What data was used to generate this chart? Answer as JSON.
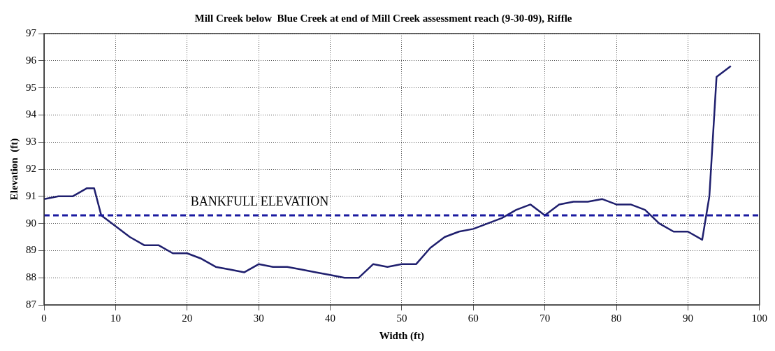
{
  "chart_data": {
    "type": "line",
    "title": "Mill Creek below  Blue Creek at end of Mill Creek assessment reach (9-30-09), Riffle",
    "xlabel": "Width (ft)",
    "ylabel": "Elevation  (ft)",
    "x": [
      0,
      2,
      4,
      6,
      7,
      8,
      10,
      12,
      14,
      16,
      18,
      20,
      22,
      24,
      26,
      28,
      30,
      32,
      34,
      36,
      38,
      40,
      42,
      44,
      46,
      48,
      50,
      52,
      54,
      56,
      58,
      60,
      62,
      64,
      66,
      68,
      70,
      72,
      74,
      76,
      78,
      80,
      82,
      84,
      86,
      88,
      90,
      92,
      93,
      94,
      96
    ],
    "series": [
      {
        "color": "#1f1f6e",
        "values": [
          90.9,
          91.0,
          91.0,
          91.3,
          91.3,
          90.3,
          89.9,
          89.5,
          89.2,
          89.2,
          88.9,
          88.9,
          88.7,
          88.4,
          88.3,
          88.2,
          88.5,
          88.4,
          88.4,
          88.3,
          88.2,
          88.1,
          88.0,
          88.0,
          88.5,
          88.4,
          88.5,
          88.5,
          89.1,
          89.5,
          89.7,
          89.8,
          90.0,
          90.2,
          90.5,
          90.7,
          90.3,
          90.7,
          90.8,
          90.8,
          90.9,
          90.7,
          90.7,
          90.5,
          90.0,
          89.7,
          89.7,
          89.4,
          91.0,
          95.4,
          95.8
        ]
      }
    ],
    "ref_lines": [
      {
        "axis": "y",
        "value": 90.3,
        "label": "BANKFULL ELEVATION",
        "color": "#1a1aa0",
        "line_style": "dashed"
      }
    ],
    "xlim": [
      0,
      100
    ],
    "xticks": [
      0,
      10,
      20,
      30,
      40,
      50,
      60,
      70,
      80,
      90,
      100
    ],
    "ylim": [
      87,
      97
    ],
    "yticks": [
      87,
      88,
      89,
      90,
      91,
      92,
      93,
      94,
      95,
      96,
      97
    ],
    "grid": true,
    "legend": false,
    "marker": "none",
    "line_style": "solid"
  }
}
